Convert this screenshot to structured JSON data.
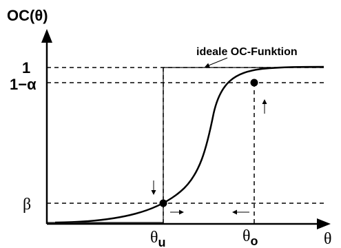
{
  "axis": {
    "y_label": "OC(θ)",
    "x_label": "θ"
  },
  "y_ticks": {
    "one": "1",
    "one_minus_alpha": "1−α",
    "beta": "β"
  },
  "x_ticks": {
    "theta_u_base": "θ",
    "theta_u_sub": "u",
    "theta_o_base": "θ",
    "theta_o_sub": "o"
  },
  "annotation": {
    "ideal_label": "ideale OC-Funktion"
  },
  "colors": {
    "ink": "#000000",
    "background": "#ffffff"
  }
}
